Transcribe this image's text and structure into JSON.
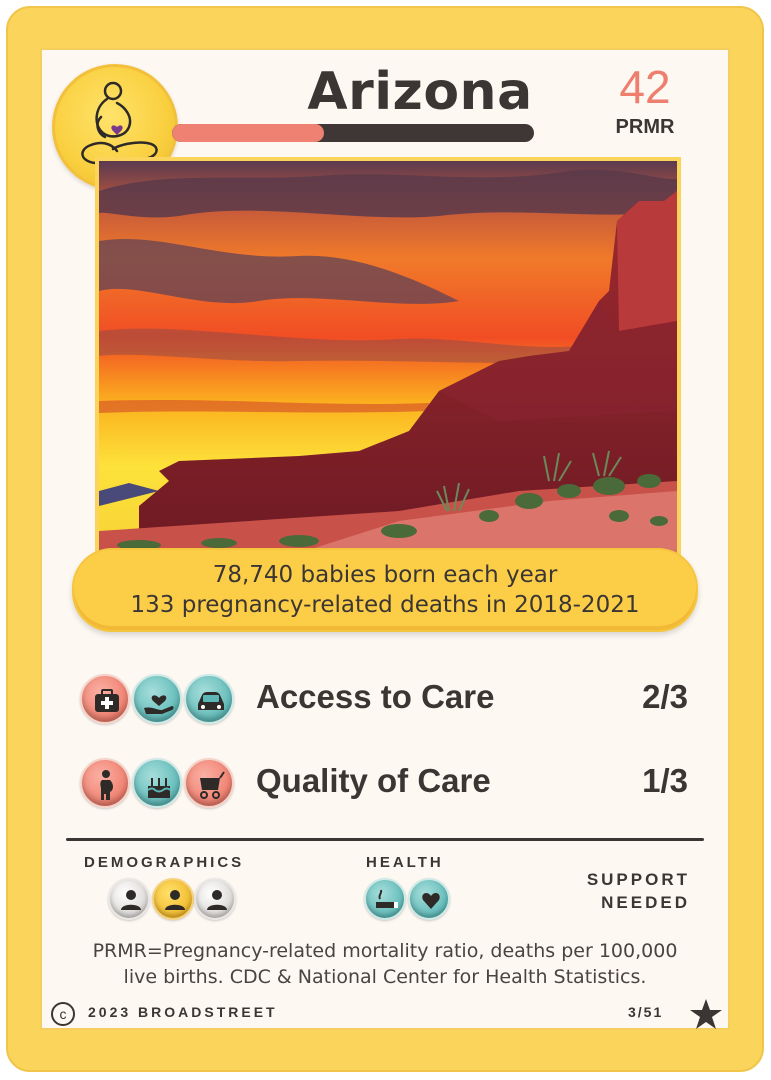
{
  "card": {
    "state": "Arizona",
    "prmr_value": "42",
    "prmr_label": "PRMR",
    "prmr_bar_fraction": 0.42
  },
  "stats": {
    "births": "78,740 babies born each year",
    "deaths": "133 pregnancy-related deaths in 2018-2021"
  },
  "categories": [
    {
      "label": "Access to Care",
      "score": "2/3",
      "icons": [
        "medical-kit-icon",
        "heart-in-hand-icon",
        "car-icon"
      ]
    },
    {
      "label": "Quality of Care",
      "score": "1/3",
      "icons": [
        "pregnant-person-icon",
        "birthday-cake-icon",
        "baby-stroller-icon"
      ]
    }
  ],
  "sections": {
    "demographics": "DEMOGRAPHICS",
    "health": "HEALTH",
    "support_line1": "SUPPORT",
    "support_line2": "NEEDED"
  },
  "footnote": {
    "line1": "PRMR=Pregnancy-related mortality ratio, deaths per 100,000",
    "line2": "live births. CDC & National Center for Health Statistics."
  },
  "footer": {
    "copyright_symbol": "c",
    "copyright": "2023 BROADSTREET",
    "card_number": "3/51"
  },
  "colors": {
    "frame": "#fbd55b",
    "accent_pink": "#ee7e6d",
    "accent_teal": "#5bb8b6",
    "text_dark": "#3b3633"
  }
}
